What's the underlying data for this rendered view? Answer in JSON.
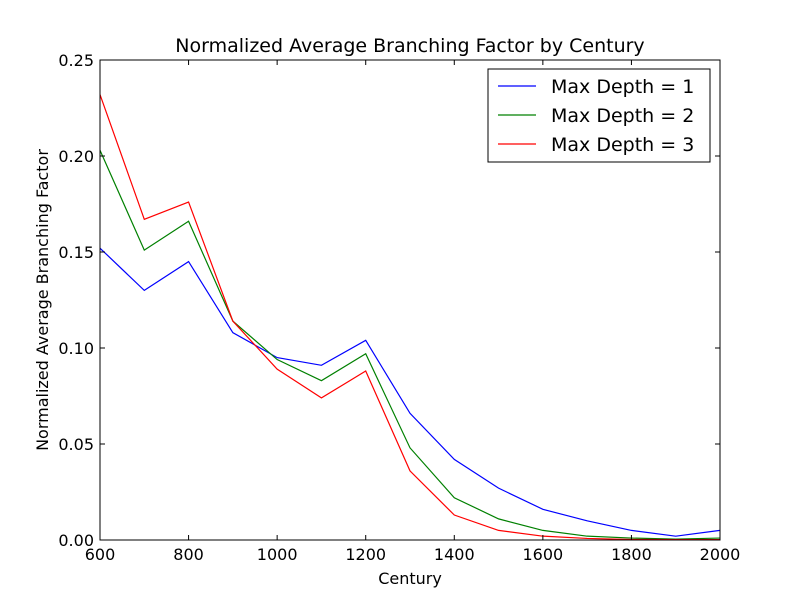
{
  "chart_data": {
    "type": "line",
    "title": "Normalized Average Branching Factor by Century",
    "xlabel": "Century",
    "ylabel": "Normalized Average Branching Factor",
    "xlim": [
      600,
      2000
    ],
    "ylim": [
      0,
      0.25
    ],
    "x_ticks": [
      "600",
      "800",
      "1000",
      "1200",
      "1400",
      "1600",
      "1800",
      "2000"
    ],
    "y_ticks": [
      "0.00",
      "0.05",
      "0.10",
      "0.15",
      "0.20",
      "0.25"
    ],
    "x": [
      600,
      700,
      800,
      900,
      1000,
      1100,
      1200,
      1300,
      1400,
      1500,
      1600,
      1700,
      1800,
      1900,
      2000
    ],
    "legend_position": "top-right",
    "grid": false,
    "series": [
      {
        "name": "Max Depth = 1",
        "color": "#0000ff",
        "values": [
          0.152,
          0.13,
          0.145,
          0.108,
          0.095,
          0.091,
          0.104,
          0.066,
          0.042,
          0.027,
          0.016,
          0.01,
          0.005,
          0.002,
          0.005
        ]
      },
      {
        "name": "Max Depth = 2",
        "color": "#008000",
        "values": [
          0.203,
          0.151,
          0.166,
          0.114,
          0.094,
          0.083,
          0.097,
          0.048,
          0.022,
          0.011,
          0.005,
          0.002,
          0.001,
          0.0005,
          0.001
        ]
      },
      {
        "name": "Max Depth = 3",
        "color": "#ff0000",
        "values": [
          0.232,
          0.167,
          0.176,
          0.114,
          0.089,
          0.074,
          0.088,
          0.036,
          0.013,
          0.005,
          0.002,
          0.0008,
          0.0003,
          0.0002,
          0.0002
        ]
      }
    ]
  }
}
